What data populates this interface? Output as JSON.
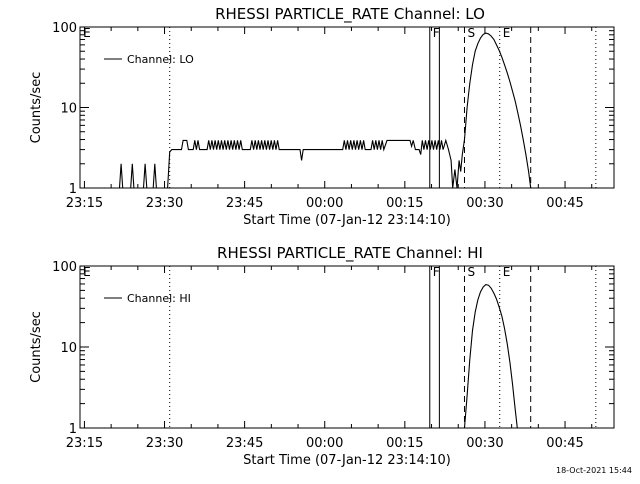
{
  "chart_data": [
    {
      "type": "line",
      "title": "RHESSI PARTICLE_RATE Channel: LO",
      "xlabel": "Start Time (07-Jan-12 23:14:10)",
      "ylabel": "Counts/sec",
      "x_unit": "minutes after 23:14:10",
      "x_tick_labels": [
        "23:15",
        "23:30",
        "23:45",
        "00:00",
        "00:15",
        "00:30",
        "00:45"
      ],
      "x_ticks": [
        0.83,
        15.83,
        30.83,
        45.83,
        60.83,
        75.83,
        90.83
      ],
      "xlim": [
        0,
        100
      ],
      "y_scale": "log",
      "ylim": [
        1,
        100
      ],
      "y_tick_labels": [
        "1",
        "10",
        "100"
      ],
      "y_ticks": [
        1,
        10,
        100
      ],
      "legend": {
        "position": "top-left",
        "entries": [
          "Channel: LO"
        ]
      },
      "series": [
        {
          "name": "Channel: LO",
          "points": [
            [
              0,
              1
            ],
            [
              7.4,
              1
            ],
            [
              7.7,
              2
            ],
            [
              8.0,
              1
            ],
            [
              9.5,
              1
            ],
            [
              9.8,
              2
            ],
            [
              10.1,
              1
            ],
            [
              11.9,
              1
            ],
            [
              12.2,
              2
            ],
            [
              12.5,
              1
            ],
            [
              13.7,
              1
            ],
            [
              14.0,
              2
            ],
            [
              14.3,
              1
            ],
            [
              16.4,
              1
            ],
            [
              16.8,
              2.8
            ],
            [
              17.2,
              3
            ],
            [
              19.0,
              3
            ],
            [
              19.3,
              3.9
            ],
            [
              20.0,
              3.9
            ],
            [
              20.3,
              3
            ],
            [
              21.2,
              3
            ],
            [
              21.5,
              3.9
            ],
            [
              21.8,
              3
            ],
            [
              22.1,
              3.9
            ],
            [
              22.4,
              3
            ],
            [
              23.8,
              3
            ],
            [
              24.1,
              3.9
            ],
            [
              24.4,
              3
            ],
            [
              24.7,
              3.9
            ],
            [
              25.0,
              3
            ],
            [
              25.3,
              3.9
            ],
            [
              25.6,
              3
            ],
            [
              25.9,
              3.9
            ],
            [
              26.2,
              3
            ],
            [
              26.5,
              3.9
            ],
            [
              26.8,
              3
            ],
            [
              27.1,
              3.9
            ],
            [
              27.4,
              3
            ],
            [
              27.7,
              3.9
            ],
            [
              28.0,
              3
            ],
            [
              28.3,
              3.9
            ],
            [
              28.6,
              3
            ],
            [
              28.9,
              3.9
            ],
            [
              29.2,
              3
            ],
            [
              29.5,
              3.9
            ],
            [
              29.8,
              3
            ],
            [
              30.1,
              3.9
            ],
            [
              30.4,
              3
            ],
            [
              31.9,
              3
            ],
            [
              32.2,
              3.9
            ],
            [
              32.5,
              3
            ],
            [
              32.8,
              3.9
            ],
            [
              33.1,
              3
            ],
            [
              33.4,
              3.9
            ],
            [
              33.7,
              3
            ],
            [
              34.0,
              3.9
            ],
            [
              34.3,
              3
            ],
            [
              34.6,
              3.9
            ],
            [
              34.9,
              3
            ],
            [
              35.2,
              3.9
            ],
            [
              35.5,
              3
            ],
            [
              35.8,
              3.9
            ],
            [
              36.1,
              3
            ],
            [
              36.4,
              3.9
            ],
            [
              36.7,
              3
            ],
            [
              37.0,
              3.9
            ],
            [
              37.3,
              3
            ],
            [
              41.2,
              3
            ],
            [
              41.5,
              2.2
            ],
            [
              41.8,
              3
            ],
            [
              49.2,
              3
            ],
            [
              49.5,
              3.9
            ],
            [
              49.8,
              3
            ],
            [
              50.1,
              3.9
            ],
            [
              50.4,
              3
            ],
            [
              50.7,
              3.9
            ],
            [
              51.0,
              3
            ],
            [
              51.3,
              3.9
            ],
            [
              51.6,
              3
            ],
            [
              51.9,
              3.9
            ],
            [
              52.2,
              3
            ],
            [
              52.5,
              3.9
            ],
            [
              52.8,
              3
            ],
            [
              53.1,
              3.9
            ],
            [
              53.4,
              3
            ],
            [
              54.5,
              3
            ],
            [
              54.8,
              3.9
            ],
            [
              55.1,
              3
            ],
            [
              55.4,
              3.9
            ],
            [
              55.7,
              3
            ],
            [
              56.0,
              3.9
            ],
            [
              56.3,
              3
            ],
            [
              56.6,
              3.9
            ],
            [
              56.9,
              3
            ],
            [
              57.5,
              3.9
            ],
            [
              61.8,
              3.9
            ],
            [
              62.1,
              3.3
            ],
            [
              62.4,
              3.9
            ],
            [
              62.8,
              3
            ],
            [
              63.5,
              3
            ],
            [
              63.8,
              2.6
            ],
            [
              64.1,
              3.9
            ],
            [
              64.4,
              3
            ],
            [
              64.7,
              3.9
            ],
            [
              65.0,
              3
            ],
            [
              65.3,
              3.9
            ],
            [
              65.6,
              3
            ],
            [
              65.9,
              3.9
            ],
            [
              66.2,
              3
            ],
            [
              66.5,
              3.9
            ],
            [
              66.8,
              3
            ],
            [
              67.1,
              3.9
            ],
            [
              67.4,
              3
            ],
            [
              67.7,
              3.9
            ],
            [
              68.0,
              3
            ],
            [
              68.5,
              3.9
            ],
            [
              69.0,
              3
            ],
            [
              69.5,
              2.2
            ],
            [
              69.8,
              1
            ],
            [
              70.2,
              1.7
            ],
            [
              70.6,
              1
            ],
            [
              71.0,
              2.2
            ],
            [
              71.3,
              1.6
            ],
            [
              71.6,
              2.6
            ],
            [
              72.0,
              4
            ],
            [
              72.5,
              10
            ],
            [
              73.0,
              20
            ],
            [
              73.5,
              34
            ],
            [
              74.0,
              50
            ],
            [
              74.5,
              62
            ],
            [
              75.0,
              73
            ],
            [
              75.5,
              81
            ],
            [
              76.0,
              84
            ],
            [
              76.5,
              82
            ],
            [
              77.0,
              77
            ],
            [
              77.5,
              70
            ],
            [
              78.0,
              60
            ],
            [
              78.5,
              51
            ],
            [
              79.0,
              42
            ],
            [
              79.5,
              34
            ],
            [
              80.0,
              27
            ],
            [
              80.5,
              21
            ],
            [
              81.0,
              16
            ],
            [
              81.5,
              12
            ],
            [
              82.0,
              8.5
            ],
            [
              82.5,
              6
            ],
            [
              83.0,
              4
            ],
            [
              83.5,
              2.6
            ],
            [
              84.0,
              1.6
            ],
            [
              84.4,
              1
            ]
          ]
        }
      ],
      "markers": [
        {
          "label": "F",
          "x": 65.5,
          "style": "solid"
        },
        {
          "label": "",
          "x": 67.3,
          "style": "solid"
        },
        {
          "label": "S",
          "x": 72.0,
          "style": "dashed"
        },
        {
          "label": "E",
          "x": 78.6,
          "style": "dotted"
        },
        {
          "label": "",
          "x": 84.4,
          "style": "dashed"
        },
        {
          "label": "E",
          "x": 0.2,
          "style": "none"
        },
        {
          "label": "",
          "x": 16.8,
          "style": "dotted"
        },
        {
          "label": "",
          "x": 96.6,
          "style": "dotted"
        }
      ]
    },
    {
      "type": "line",
      "title": "RHESSI PARTICLE_RATE Channel: HI",
      "xlabel": "Start Time (07-Jan-12 23:14:10)",
      "ylabel": "Counts/sec",
      "x_unit": "minutes after 23:14:10",
      "x_tick_labels": [
        "23:15",
        "23:30",
        "23:45",
        "00:00",
        "00:15",
        "00:30",
        "00:45"
      ],
      "x_ticks": [
        0.83,
        15.83,
        30.83,
        45.83,
        60.83,
        75.83,
        90.83
      ],
      "xlim": [
        0,
        100
      ],
      "y_scale": "log",
      "ylim": [
        1,
        100
      ],
      "y_tick_labels": [
        "1",
        "10",
        "100"
      ],
      "y_ticks": [
        1,
        10,
        100
      ],
      "legend": {
        "position": "top-left",
        "entries": [
          "Channel: HI"
        ]
      },
      "series": [
        {
          "name": "Channel: HI",
          "points": [
            [
              72.0,
              1
            ],
            [
              72.5,
              2.5
            ],
            [
              73.0,
              7
            ],
            [
              73.5,
              16
            ],
            [
              74.0,
              27
            ],
            [
              74.5,
              38
            ],
            [
              75.0,
              48
            ],
            [
              75.5,
              55
            ],
            [
              76.0,
              59
            ],
            [
              76.5,
              58
            ],
            [
              77.0,
              53
            ],
            [
              77.5,
              46
            ],
            [
              78.0,
              39
            ],
            [
              78.5,
              31
            ],
            [
              79.0,
              24
            ],
            [
              79.5,
              17
            ],
            [
              80.0,
              11
            ],
            [
              80.5,
              6.5
            ],
            [
              81.0,
              3.5
            ],
            [
              81.5,
              1.7
            ],
            [
              81.9,
              1
            ]
          ]
        }
      ],
      "markers": [
        {
          "label": "F",
          "x": 65.5,
          "style": "solid"
        },
        {
          "label": "",
          "x": 67.3,
          "style": "solid"
        },
        {
          "label": "S",
          "x": 72.0,
          "style": "dashed"
        },
        {
          "label": "E",
          "x": 78.6,
          "style": "dotted"
        },
        {
          "label": "",
          "x": 84.4,
          "style": "dashed"
        },
        {
          "label": "E",
          "x": 0.2,
          "style": "none"
        },
        {
          "label": "",
          "x": 16.8,
          "style": "dotted"
        },
        {
          "label": "",
          "x": 96.6,
          "style": "dotted"
        }
      ]
    }
  ],
  "footer": {
    "timestamp": "18-Oct-2021 15:44"
  }
}
